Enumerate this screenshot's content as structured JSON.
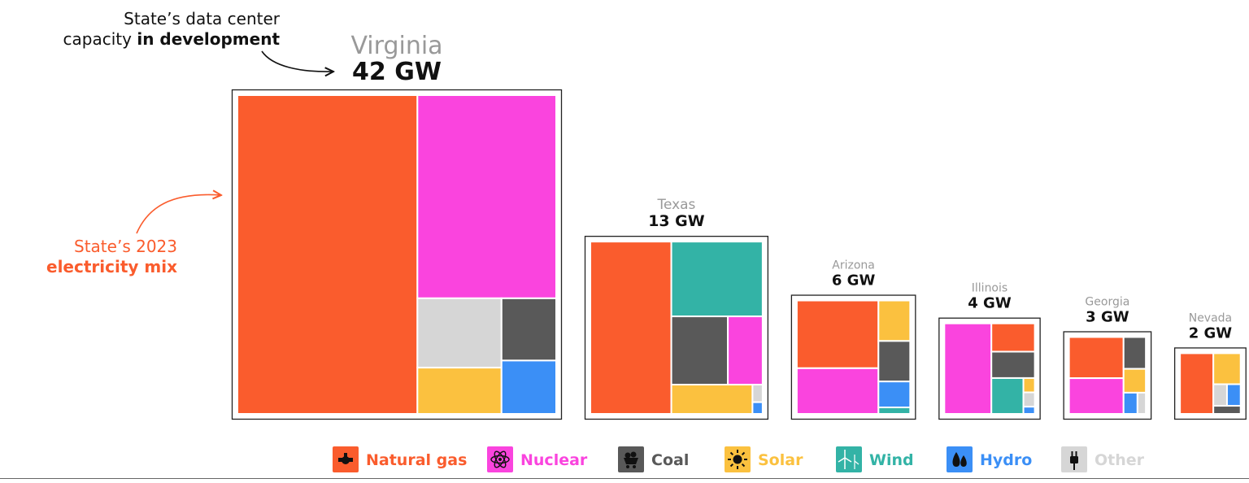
{
  "annotations": {
    "capacity_line1": "State’s data center",
    "capacity_line2_prefix": "capacity ",
    "capacity_line2_bold": "in development",
    "mix_line1": "State’s 2023",
    "mix_line2": "electricity mix"
  },
  "sources": [
    {
      "key": "gas",
      "label": "Natural gas",
      "color": "#fa5c2d",
      "icon": "gas-pump-icon"
    },
    {
      "key": "nuclear",
      "label": "Nuclear",
      "color": "#fa44de",
      "icon": "atom-icon"
    },
    {
      "key": "coal",
      "label": "Coal",
      "color": "#595959",
      "icon": "coal-cart-icon"
    },
    {
      "key": "solar",
      "label": "Solar",
      "color": "#fbc13f",
      "icon": "sun-icon"
    },
    {
      "key": "wind",
      "label": "Wind",
      "color": "#33b3a6",
      "icon": "wind-turbine-icon"
    },
    {
      "key": "hydro",
      "label": "Hydro",
      "color": "#3b8ff6",
      "icon": "water-drops-icon"
    },
    {
      "key": "other",
      "label": "Other",
      "color": "#d6d6d6",
      "icon": "plug-icon"
    }
  ],
  "chart_data": {
    "type": "treemap",
    "title": "",
    "units": "GW",
    "states": [
      {
        "name": "Virginia",
        "capacity_label": "42 GW",
        "capacity": 42,
        "mix": {
          "gas": 0.59,
          "nuclear": 0.29,
          "coal": 0.035,
          "solar": 0.04,
          "wind": 0.0,
          "hydro": 0.03,
          "other": 0.06
        }
      },
      {
        "name": "Texas",
        "capacity_label": "13 GW",
        "capacity": 13,
        "mix": {
          "gas": 0.47,
          "nuclear": 0.08,
          "coal": 0.13,
          "solar": 0.08,
          "wind": 0.23,
          "hydro": 0.004,
          "other": 0.006
        }
      },
      {
        "name": "Arizona",
        "capacity_label": "6 GW",
        "capacity": 6,
        "mix": {
          "gas": 0.43,
          "nuclear": 0.29,
          "coal": 0.1,
          "solar": 0.1,
          "wind": 0.016,
          "hydro": 0.064,
          "other": 0.0
        }
      },
      {
        "name": "Illinois",
        "capacity_label": "4 GW",
        "capacity": 4,
        "mix": {
          "gas": 0.15,
          "nuclear": 0.52,
          "coal": 0.14,
          "solar": 0.02,
          "wind": 0.14,
          "hydro": 0.01,
          "other": 0.02
        }
      },
      {
        "name": "Georgia",
        "capacity_label": "3 GW",
        "capacity": 3,
        "mix": {
          "gas": 0.38,
          "nuclear": 0.33,
          "coal": 0.12,
          "solar": 0.09,
          "wind": 0.0,
          "hydro": 0.05,
          "other": 0.03
        }
      },
      {
        "name": "Nevada",
        "capacity_label": "2 GW",
        "capacity": 2,
        "mix": {
          "gas": 0.55,
          "nuclear": 0.0,
          "coal": 0.06,
          "solar": 0.23,
          "wind": 0.0,
          "hydro": 0.08,
          "other": 0.08
        }
      }
    ]
  }
}
